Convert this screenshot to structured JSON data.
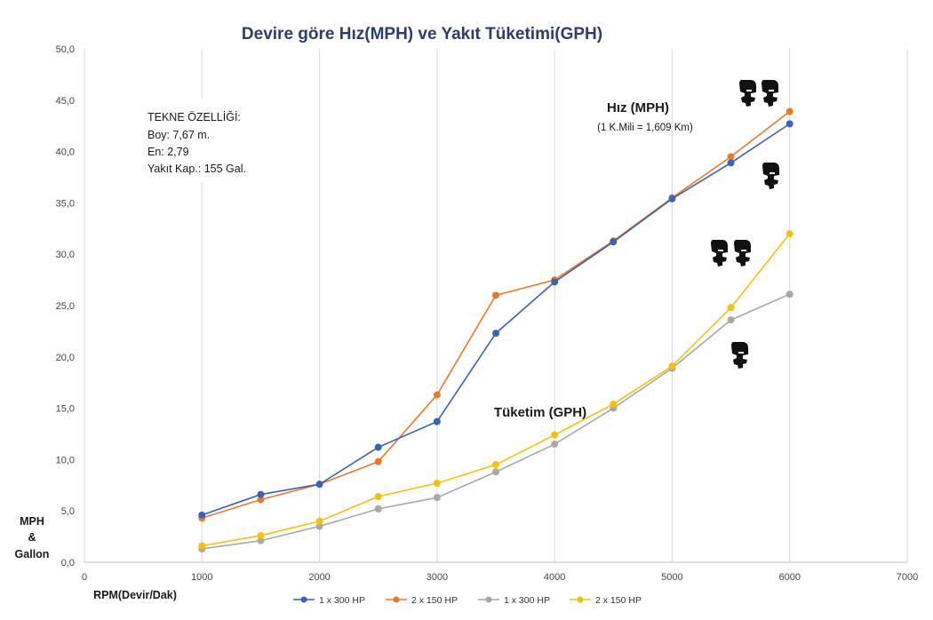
{
  "chart_data": {
    "type": "line",
    "title": "Devire göre Hız(MPH) ve Yakıt Tüketimi(GPH)",
    "xlabel": "RPM(Devir/Dak)",
    "ylabel_lines": [
      "MPH",
      "&",
      "Gallon"
    ],
    "xlim": [
      0,
      7000
    ],
    "ylim": [
      0,
      50
    ],
    "x_ticks": [
      "0",
      "1000",
      "2000",
      "3000",
      "4000",
      "5000",
      "6000",
      "7000"
    ],
    "y_ticks": [
      "0,0",
      "5,0",
      "10,0",
      "15,0",
      "20,0",
      "25,0",
      "30,0",
      "35,0",
      "40,0",
      "45,0",
      "50,0"
    ],
    "grid": "vertical",
    "legend_position": "bottom",
    "x": [
      1000,
      1500,
      2000,
      2500,
      3000,
      3500,
      4000,
      4500,
      5000,
      5500,
      6000
    ],
    "series": [
      {
        "name": "1 x 300 HP",
        "color": "#3a62b5",
        "values": [
          4.6,
          6.6,
          7.6,
          11.2,
          13.7,
          22.3,
          27.3,
          31.2,
          35.4,
          38.9,
          42.7
        ]
      },
      {
        "name": "2 x 150 HP",
        "color": "#e87a30",
        "values": [
          4.3,
          6.1,
          7.6,
          9.8,
          16.3,
          26.0,
          27.5,
          31.3,
          35.5,
          39.5,
          43.9
        ]
      },
      {
        "name": "1 x 300 HP",
        "color": "#a8a8a8",
        "values": [
          1.3,
          2.1,
          3.5,
          5.2,
          6.3,
          8.8,
          11.5,
          15.0,
          18.9,
          23.6,
          26.1
        ]
      },
      {
        "name": "2 x 150 HP",
        "color": "#f5c012",
        "values": [
          1.6,
          2.6,
          4.0,
          6.4,
          7.7,
          9.5,
          12.4,
          15.4,
          19.1,
          24.8,
          32.0
        ]
      }
    ],
    "annotations": {
      "specs_heading": "TEKNE ÖZELLİĞİ:",
      "specs_lines": [
        "Boy: 7,67 m.",
        "En: 2,79",
        "Yakıt Kap.: 155 Gal."
      ],
      "speed_label": "Hız (MPH)",
      "speed_sublabel": "(1 K.Mili = 1,609 Km)",
      "consumption_label": "Tüketim (GPH)"
    }
  },
  "icons": [
    "outboard-motor-icon"
  ]
}
